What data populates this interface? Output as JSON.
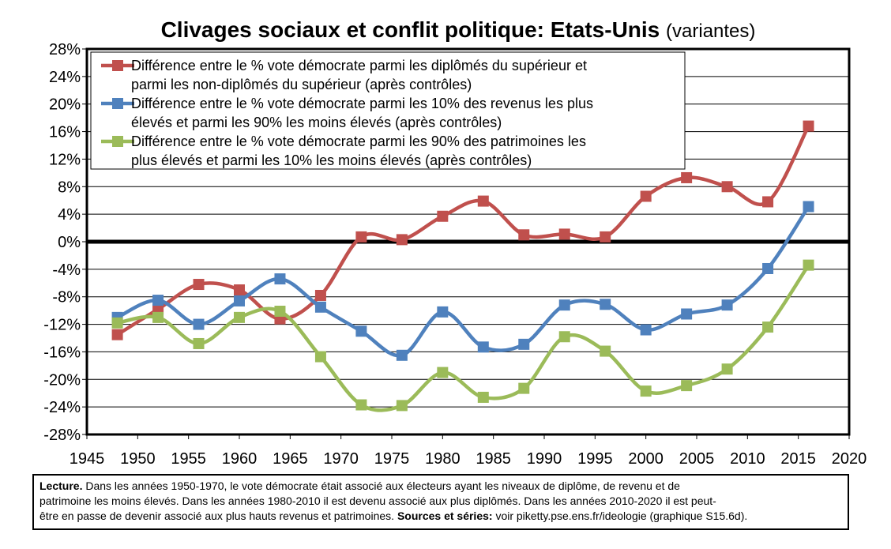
{
  "chart_data": {
    "type": "line",
    "title": "Clivages sociaux et conflit politique: Etats-Unis",
    "subtitle": "(variantes)",
    "ylim": [
      -28,
      28
    ],
    "xlim": [
      1945,
      2020
    ],
    "y_ticks": [
      "28%",
      "24%",
      "20%",
      "16%",
      "12%",
      "8%",
      "4%",
      "0%",
      "-4%",
      "-8%",
      "-12%",
      "-16%",
      "-20%",
      "-24%",
      "-28%"
    ],
    "x_ticks": [
      "1945",
      "1950",
      "1955",
      "1960",
      "1965",
      "1970",
      "1975",
      "1980",
      "1985",
      "1990",
      "1995",
      "2000",
      "2005",
      "2010",
      "2015",
      "2020"
    ],
    "grid": "horizontal",
    "legend_placement": "top-left",
    "x": [
      1948,
      1952,
      1956,
      1960,
      1964,
      1968,
      1972,
      1976,
      1980,
      1984,
      1988,
      1992,
      1996,
      2000,
      2004,
      2008,
      2012,
      2016
    ],
    "series": [
      {
        "name": "Différence entre le % vote démocrate parmi les diplômés du supérieur et parmi les non-diplômés du supérieur (après contrôles)",
        "color": "#c0504d",
        "values": [
          -13.5,
          -9.8,
          -6.2,
          -7.0,
          -11.2,
          -7.8,
          0.7,
          0.3,
          3.7,
          5.9,
          1.0,
          1.1,
          0.7,
          6.6,
          9.3,
          8.0,
          5.8,
          16.8
        ]
      },
      {
        "name": "Différence entre le % vote démocrate parmi les 10% des revenus les plus élevés et parmi les 90% les moins élevés (après contrôles)",
        "color": "#4f81bd",
        "values": [
          -11.0,
          -8.5,
          -12.0,
          -8.6,
          -5.4,
          -9.5,
          -13.0,
          -16.5,
          -10.2,
          -15.3,
          -14.9,
          -9.2,
          -9.1,
          -12.8,
          -10.5,
          -9.2,
          -3.9,
          5.1
        ]
      },
      {
        "name": "Différence entre le % vote démocrate parmi les 90% des patrimoines les plus élevés et parmi les 10% les moins élevés (après contrôles)",
        "color": "#9bbb59",
        "values": [
          -11.8,
          -11.0,
          -14.8,
          -11.0,
          -10.1,
          -16.7,
          -23.7,
          -23.8,
          -19.0,
          -22.6,
          -21.3,
          -13.8,
          -15.9,
          -21.7,
          -20.9,
          -18.5,
          -12.4,
          -3.4
        ]
      }
    ],
    "legend": [
      [
        "Différence entre le % vote démocrate parmi les diplômés du supérieur et",
        "parmi les non-diplômés du supérieur (après contrôles)"
      ],
      [
        "Différence entre le % vote démocrate parmi les 10% des revenus les plus",
        "élevés et parmi les 90% les moins élevés (après contrôles)"
      ],
      [
        "Différence entre le % vote démocrate parmi les 90% des patrimoines les",
        "plus élevés et parmi les 10% les moins élevés (après contrôles)"
      ]
    ]
  },
  "note": {
    "lecture_label": "Lecture.",
    "line1": " Dans les années 1950-1970, le vote démocrate était associé aux électeurs ayant les niveaux de diplôme, de revenu et de",
    "line2": "patrimoine les moins élevés. Dans les années 1980-2010 il est devenu associé aux plus diplômés. Dans les années 2010-2020 il est peut-",
    "line3_start": "être en passe de devenir associé aux plus hauts revenus et patrimoines. ",
    "sources_label": "Sources et séries:",
    "sources_text": " voir piketty.pse.ens.fr/ideologie (graphique S15.6d)."
  }
}
